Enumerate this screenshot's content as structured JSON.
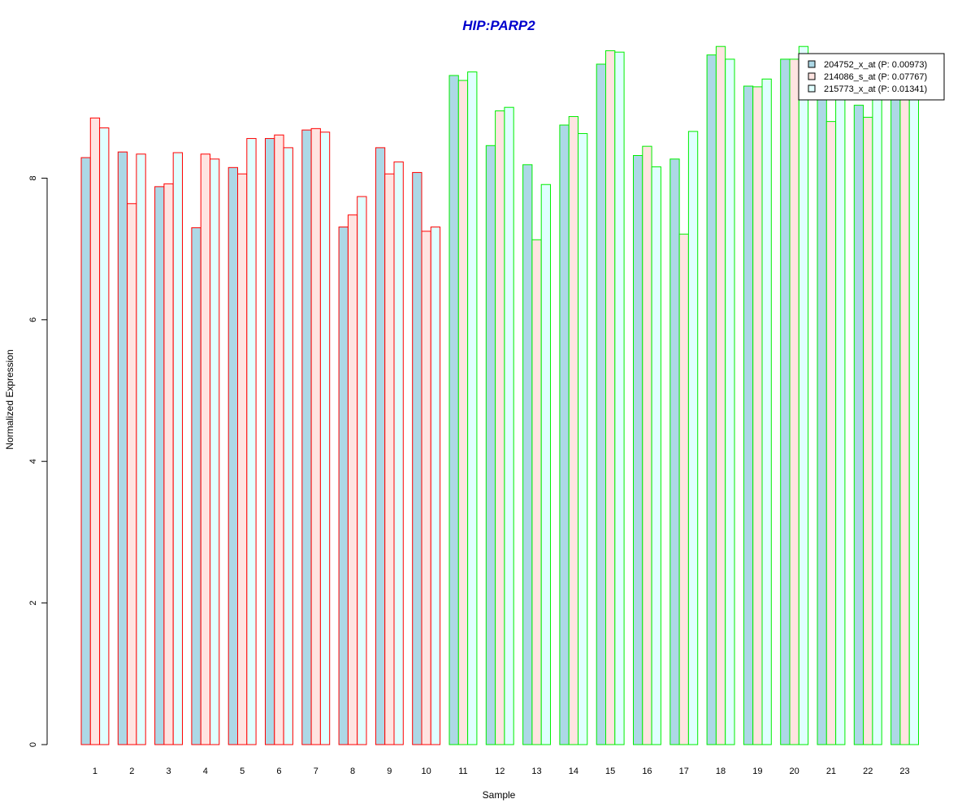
{
  "chart_data": {
    "type": "bar",
    "title": "HIP:PARP2",
    "xlabel": "Sample",
    "ylabel": "Normalized Expression",
    "ylim": [
      0,
      10
    ],
    "yticks": [
      0,
      2,
      4,
      6,
      8
    ],
    "categories": [
      "1",
      "2",
      "3",
      "4",
      "5",
      "6",
      "7",
      "8",
      "9",
      "10",
      "11",
      "12",
      "13",
      "14",
      "15",
      "16",
      "17",
      "18",
      "19",
      "20",
      "21",
      "22",
      "23"
    ],
    "series": [
      {
        "name": "204752_x_at (P: 0.00973)",
        "fill": "#add8e6",
        "values": [
          8.29,
          8.37,
          7.88,
          7.3,
          8.15,
          8.56,
          8.68,
          7.31,
          8.43,
          8.08,
          9.45,
          8.46,
          8.19,
          8.75,
          9.61,
          8.32,
          8.27,
          9.74,
          9.3,
          9.68,
          9.4,
          9.03,
          9.4
        ]
      },
      {
        "name": "214086_s_at (P: 0.07767)",
        "fill": "#ffe4e1",
        "values": [
          8.85,
          7.64,
          7.92,
          8.34,
          8.06,
          8.61,
          8.7,
          7.48,
          8.06,
          7.25,
          9.38,
          8.95,
          7.13,
          8.87,
          9.8,
          8.45,
          7.21,
          9.86,
          9.29,
          9.68,
          8.8,
          8.86,
          9.4
        ]
      },
      {
        "name": "215773_x_at (P: 0.01341)",
        "fill": "#e0ffff",
        "values": [
          8.71,
          8.34,
          8.36,
          8.27,
          8.56,
          8.43,
          8.65,
          7.74,
          8.23,
          7.31,
          9.5,
          9.0,
          7.91,
          8.63,
          9.78,
          8.16,
          8.66,
          9.68,
          9.4,
          9.86,
          9.4,
          9.4,
          9.4
        ]
      }
    ],
    "group_border_colors": {
      "samples_1_10": "#ff0000",
      "samples_11_23": "#00ee00"
    },
    "title_color": "#0000cd",
    "legend_position": "top-right"
  }
}
